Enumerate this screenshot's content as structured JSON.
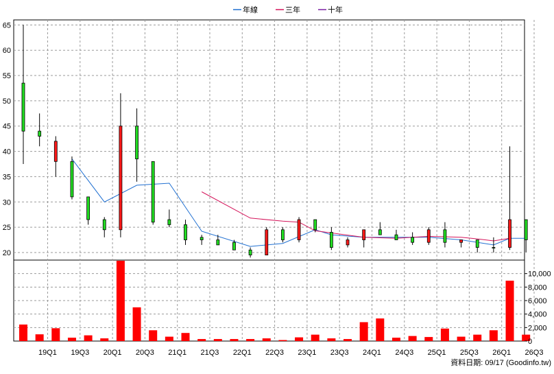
{
  "legend": [
    {
      "label": "年線",
      "color": "#1f6fd1"
    },
    {
      "label": "三年",
      "color": "#d4145a"
    },
    {
      "label": "十年",
      "color": "#7b1fa2"
    }
  ],
  "footer": "資料日期: 09/17  (Goodinfo.tw)",
  "chart_data": {
    "type": "candlestick+bar",
    "price_panel": {
      "ylim": [
        18.5,
        66
      ],
      "yticks": [
        20,
        25,
        30,
        35,
        40,
        45,
        50,
        55,
        60,
        65
      ],
      "candles": [
        {
          "q": "18Q4",
          "open": 44,
          "high": 65,
          "low": 37.5,
          "close": 53.5
        },
        {
          "q": "19Q1",
          "open": 43,
          "high": 47.5,
          "low": 41,
          "close": 44
        },
        {
          "q": "19Q2",
          "open": 42,
          "high": 43,
          "low": 35,
          "close": 38
        },
        {
          "q": "19Q3",
          "open": 31,
          "high": 39,
          "low": 30.5,
          "close": 38
        },
        {
          "q": "19Q4",
          "open": 26.5,
          "high": 31,
          "low": 25.5,
          "close": 31
        },
        {
          "q": "20Q1",
          "open": 24.5,
          "high": 27,
          "low": 23,
          "close": 26.5
        },
        {
          "q": "20Q2",
          "open": 45,
          "high": 51.5,
          "low": 23,
          "close": 24.5
        },
        {
          "q": "20Q3",
          "open": 38.5,
          "high": 48.5,
          "low": 34,
          "close": 45
        },
        {
          "q": "20Q4",
          "open": 26,
          "high": 38,
          "low": 25.5,
          "close": 38
        },
        {
          "q": "21Q1",
          "open": 25.5,
          "high": 28.5,
          "low": 25,
          "close": 26.5
        },
        {
          "q": "21Q2",
          "open": 22.5,
          "high": 26.5,
          "low": 21.5,
          "close": 25.5
        },
        {
          "q": "21Q3",
          "open": 22.5,
          "high": 23.5,
          "low": 21.5,
          "close": 23
        },
        {
          "q": "21Q4",
          "open": 21.5,
          "high": 23.5,
          "low": 21.5,
          "close": 22.5
        },
        {
          "q": "22Q1",
          "open": 20.5,
          "high": 22.5,
          "low": 20.5,
          "close": 22
        },
        {
          "q": "22Q2",
          "open": 19.5,
          "high": 21,
          "low": 19,
          "close": 20.5
        },
        {
          "q": "22Q3",
          "open": 24.5,
          "high": 25,
          "low": 19.5,
          "close": 19.5
        },
        {
          "q": "22Q4",
          "open": 22.5,
          "high": 25,
          "low": 22,
          "close": 24.5
        },
        {
          "q": "23Q1",
          "open": 26.5,
          "high": 27,
          "low": 22,
          "close": 22.5
        },
        {
          "q": "23Q2",
          "open": 24.5,
          "high": 26.5,
          "low": 24,
          "close": 26.5
        },
        {
          "q": "23Q3",
          "open": 21,
          "high": 25,
          "low": 20.5,
          "close": 24
        },
        {
          "q": "23Q4",
          "open": 22.5,
          "high": 23,
          "low": 21,
          "close": 21.5
        },
        {
          "q": "24Q1",
          "open": 24.5,
          "high": 24.5,
          "low": 21,
          "close": 22.5
        },
        {
          "q": "24Q2",
          "open": 23.5,
          "high": 26,
          "low": 23.5,
          "close": 24.5
        },
        {
          "q": "24Q3",
          "open": 22.5,
          "high": 24.5,
          "low": 22.5,
          "close": 23.5
        },
        {
          "q": "24Q4",
          "open": 22,
          "high": 24,
          "low": 21.5,
          "close": 23
        },
        {
          "q": "25Q1",
          "open": 24.5,
          "high": 25,
          "low": 21.5,
          "close": 22
        },
        {
          "q": "25Q2",
          "open": 22,
          "high": 26,
          "low": 21,
          "close": 24.5
        },
        {
          "q": "25Q3",
          "open": 22.5,
          "high": 22.5,
          "low": 21,
          "close": 22
        },
        {
          "q": "25Q4",
          "open": 21,
          "high": 22.5,
          "low": 20,
          "close": 22.5
        },
        {
          "q": "26Q1",
          "open": 21,
          "high": 23,
          "low": 20,
          "close": 21
        },
        {
          "q": "26Q2",
          "open": 26.5,
          "high": 41,
          "low": 20.5,
          "close": 21
        },
        {
          "q": "26Q3",
          "open": 22.5,
          "high": 26.5,
          "low": 20,
          "close": 26.5
        }
      ],
      "series": [
        {
          "name": "年線",
          "color": "#1f6fd1",
          "points": [
            [
              3,
              38.5
            ],
            [
              5,
              30
            ],
            [
              7,
              33.3
            ],
            [
              9,
              33.7
            ],
            [
              11,
              24.2
            ],
            [
              14,
              21.2
            ],
            [
              16,
              21.8
            ],
            [
              18,
              24.5
            ],
            [
              19,
              23.5
            ],
            [
              21,
              23
            ],
            [
              23,
              23
            ],
            [
              25,
              23
            ],
            [
              27,
              22.5
            ],
            [
              29,
              21.5
            ],
            [
              30,
              22.8
            ],
            [
              31,
              22.8
            ]
          ]
        },
        {
          "name": "三年",
          "color": "#d4145a",
          "points": [
            [
              11,
              32
            ],
            [
              14,
              26.8
            ],
            [
              16,
              26.2
            ],
            [
              17,
              26
            ],
            [
              18,
              24.3
            ],
            [
              21,
              23
            ],
            [
              23,
              22.8
            ],
            [
              25,
              23.2
            ],
            [
              27,
              23
            ],
            [
              28,
              22.7
            ],
            [
              29,
              22.3
            ],
            [
              30,
              22.8
            ]
          ]
        }
      ]
    },
    "volume_panel": {
      "ylim": [
        0,
        12000
      ],
      "yticks": [
        0,
        2000,
        4000,
        6000,
        8000,
        10000
      ],
      "ytick_labels": [
        "0",
        "2,000",
        "4,000",
        "6,000",
        "8,000",
        "10,000"
      ],
      "values": [
        2450,
        1000,
        1900,
        500,
        850,
        400,
        11900,
        5000,
        1600,
        650,
        1200,
        300,
        300,
        300,
        300,
        400,
        150,
        550,
        950,
        400,
        300,
        2800,
        3350,
        500,
        750,
        600,
        1850,
        650,
        950,
        1600,
        8950,
        950
      ]
    },
    "x_tick_labels": [
      "19Q1",
      "19Q3",
      "20Q1",
      "20Q3",
      "21Q1",
      "21Q3",
      "22Q1",
      "22Q3",
      "23Q1",
      "23Q3",
      "24Q1",
      "24Q3",
      "25Q1",
      "25Q3",
      "26Q1",
      "26Q3"
    ],
    "x_tick_positions": [
      1.5,
      3.5,
      5.5,
      7.5,
      9.5,
      11.5,
      13.5,
      15.5,
      17.5,
      19.5,
      21.5,
      23.5,
      25.5,
      27.5,
      29.5,
      31.5
    ]
  }
}
